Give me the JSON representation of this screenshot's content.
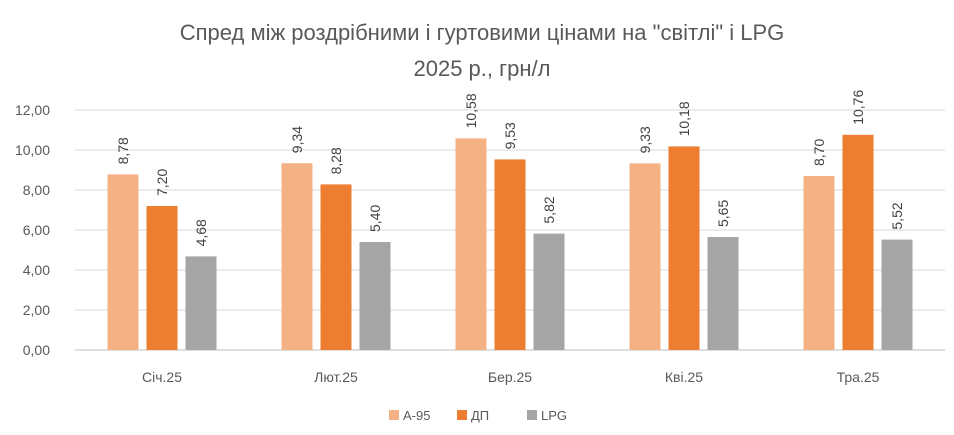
{
  "chart_data": {
    "type": "bar",
    "title_lines": [
      "Спред між роздрібними і гуртовими цінами на \"світлі\" і LPG",
      "2025 р., грн/л"
    ],
    "categories": [
      "Січ.25",
      "Лют.25",
      "Бер.25",
      "Кві.25",
      "Тра.25"
    ],
    "series": [
      {
        "name": "А-95",
        "color": "#f4b183",
        "values": [
          8.78,
          9.34,
          10.58,
          9.33,
          8.7
        ],
        "labels": [
          "8,78",
          "9,34",
          "10,58",
          "9,33",
          "8,70"
        ]
      },
      {
        "name": "ДП",
        "color": "#ed7d31",
        "values": [
          7.2,
          8.28,
          9.53,
          10.18,
          10.76
        ],
        "labels": [
          "7,20",
          "8,28",
          "9,53",
          "10,18",
          "10,76"
        ]
      },
      {
        "name": "LPG",
        "color": "#a5a5a5",
        "values": [
          4.68,
          5.4,
          5.82,
          5.65,
          5.52
        ],
        "labels": [
          "4,68",
          "5,40",
          "5,82",
          "5,65",
          "5,52"
        ]
      }
    ],
    "yticks": [
      0,
      2,
      4,
      6,
      8,
      10,
      12
    ],
    "ytick_labels": [
      "0,00",
      "2,00",
      "4,00",
      "6,00",
      "8,00",
      "10,00",
      "12,00"
    ],
    "ylim": [
      0,
      12
    ],
    "grid": true,
    "legend_position": "bottom"
  }
}
